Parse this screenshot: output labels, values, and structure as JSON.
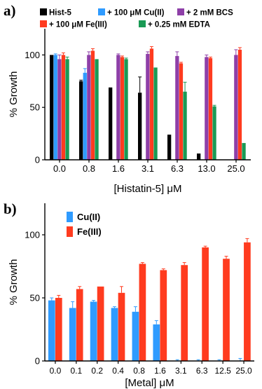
{
  "colors": {
    "hist5": "#000000",
    "cu": "#2f9bff",
    "bcs": "#8e3fa8",
    "fe": "#ff3b1f",
    "edta": "#1a9a55"
  },
  "chart_data": [
    {
      "panel": "a)",
      "type": "bar",
      "xlabel": "[Histatin-5] μM",
      "ylabel": "% Growth",
      "ylim": [
        0,
        125
      ],
      "yticks": [
        "0",
        "50",
        "100"
      ],
      "categories": [
        "0.0",
        "0.8",
        "1.6",
        "3.1",
        "6.3",
        "13.0",
        "25.0"
      ],
      "series": [
        {
          "name": "Hist-5",
          "color_key": "hist5",
          "values": [
            100,
            75,
            69,
            64,
            24,
            6,
            0
          ],
          "errors": [
            0,
            1,
            0,
            15,
            0,
            0,
            0
          ]
        },
        {
          "name": "+ 100 μM Cu(II)",
          "color_key": "cu",
          "values": [
            100,
            83,
            null,
            null,
            null,
            null,
            null
          ],
          "errors": [
            1,
            4,
            0,
            0,
            0,
            0,
            0
          ]
        },
        {
          "name": "+ 2 mM BCS",
          "color_key": "bcs",
          "values": [
            96,
            100,
            100,
            101,
            99,
            98,
            100
          ],
          "errors": [
            4,
            3,
            1,
            2,
            4,
            2,
            5
          ]
        },
        {
          "name": "+ 100 μM Fe(III)",
          "color_key": "fe",
          "values": [
            100,
            104,
            98,
            106,
            92,
            97,
            105
          ],
          "errors": [
            2,
            2,
            1,
            2,
            1,
            1,
            2
          ]
        },
        {
          "name": "+ 0.25 mM EDTA",
          "color_key": "edta",
          "values": [
            96,
            96,
            96,
            88,
            65,
            51,
            16
          ],
          "errors": [
            2,
            0,
            1,
            0,
            9,
            1,
            0
          ]
        }
      ],
      "legend_position": "top",
      "grid": false
    },
    {
      "panel": "b)",
      "type": "bar",
      "xlabel": "[Metal] μM",
      "ylabel": "% Growth",
      "ylim": [
        0,
        125
      ],
      "yticks": [
        "0",
        "50",
        "100"
      ],
      "categories": [
        "0.0",
        "0.1",
        "0.2",
        "0.4",
        "0.8",
        "1.6",
        "3.1",
        "6.3",
        "12.5",
        "25.0"
      ],
      "series": [
        {
          "name": "Cu(II)",
          "color_key": "cu",
          "values": [
            48,
            42,
            47,
            42,
            39,
            29,
            0,
            0,
            0,
            0
          ],
          "errors": [
            2,
            5,
            1,
            1,
            4,
            3,
            1,
            1,
            1,
            2
          ]
        },
        {
          "name": "Fe(III)",
          "color_key": "fe",
          "values": [
            50,
            57,
            59,
            54,
            77,
            72,
            76,
            90,
            81,
            94
          ],
          "errors": [
            2,
            2,
            0,
            5,
            1,
            1,
            2,
            1,
            2,
            3
          ]
        }
      ],
      "legend_position": "top-left",
      "grid": false
    }
  ]
}
